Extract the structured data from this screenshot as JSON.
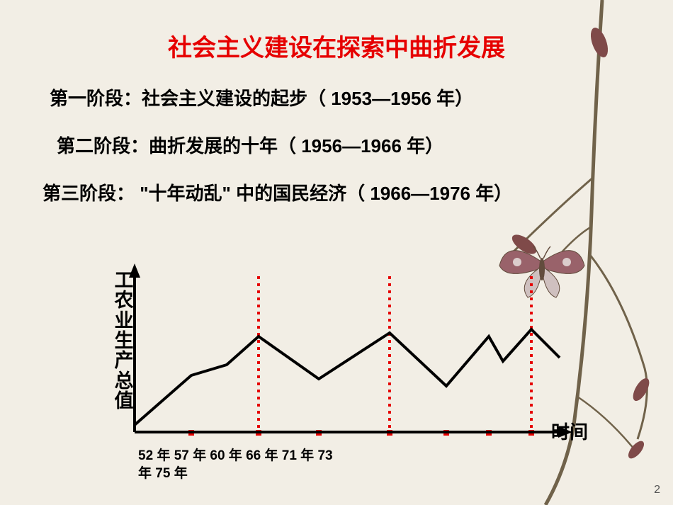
{
  "title": "社会主义建设在探索中曲折发展",
  "phases": [
    "第一阶段：社会主义建设的起步（ 1953—1956 年）",
    "第二阶段：曲折发展的十年（ 1956—1966 年）",
    "第三阶段： \"十年动乱\" 中的国民经济（ 1966—1976 年）"
  ],
  "chart": {
    "type": "line",
    "ylabel": "工农业生产总值",
    "xlabel": "时间",
    "x_axis_labels_line1": "52 年    57 年    60 年    66 年      71 年    73",
    "x_axis_labels_line2": "年   75 年",
    "axis_color": "#000000",
    "axis_width": 4,
    "line_color": "#000000",
    "line_width": 4,
    "vline_color": "#e60000",
    "vline_dash": "4,6",
    "vline_width": 4,
    "tick_color": "#e60000",
    "xlim": [
      0,
      620
    ],
    "ylim": [
      0,
      230
    ],
    "points": [
      {
        "x": 0,
        "y": 230
      },
      {
        "x": 80,
        "y": 160
      },
      {
        "x": 130,
        "y": 145
      },
      {
        "x": 175,
        "y": 105
      },
      {
        "x": 260,
        "y": 165
      },
      {
        "x": 360,
        "y": 100
      },
      {
        "x": 440,
        "y": 175
      },
      {
        "x": 500,
        "y": 105
      },
      {
        "x": 520,
        "y": 140
      },
      {
        "x": 560,
        "y": 95
      },
      {
        "x": 600,
        "y": 135
      }
    ],
    "vlines_x": [
      175,
      360,
      560
    ],
    "ticks_x": [
      80,
      175,
      260,
      360,
      440,
      500,
      560
    ],
    "axis_origin": {
      "x": 50,
      "y": 240
    },
    "y_axis_top": 0,
    "x_axis_right": 670,
    "background_color": "#f2eee5"
  },
  "page_number": "2",
  "decor": {
    "branch_color": "#5a4a2f",
    "leaf_color": "#6b2e2e",
    "butterfly_body": "#4a3020",
    "butterfly_wing1": "#8a4a55",
    "butterfly_wing2": "#c9b9b9"
  }
}
